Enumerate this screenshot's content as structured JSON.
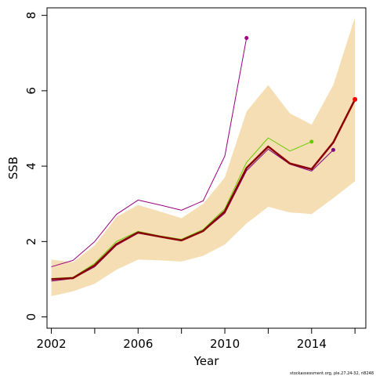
{
  "chart_data": {
    "type": "line",
    "xlabel": "Year",
    "ylabel": "SSB",
    "credit": "stockassessment.org, ple.27.24-32, ri8248",
    "xlim": [
      2001.8,
      2016.5
    ],
    "ylim": [
      -0.3,
      8.2
    ],
    "x_ticks": [
      2002,
      2004,
      2006,
      2008,
      2010,
      2012,
      2014,
      2016
    ],
    "x_tick_labels": [
      "2002",
      "",
      "2006",
      "",
      "2010",
      "",
      "2014",
      ""
    ],
    "y_ticks": [
      0,
      2,
      4,
      6,
      8
    ],
    "y_tick_labels": [
      "0",
      "2",
      "4",
      "6",
      "8"
    ],
    "grid": false,
    "colors": {
      "band": "#f5deb3",
      "main": "#8b0000",
      "retro_2011": "#9b0080",
      "retro_2014": "#66cc00",
      "retro_2015": "#800080",
      "terminal_point": "#ff0000"
    },
    "confidence_band": {
      "x": [
        2002,
        2003,
        2004,
        2005,
        2006,
        2007,
        2008,
        2009,
        2010,
        2011,
        2012,
        2013,
        2014,
        2015,
        2016
      ],
      "lower": [
        0.55,
        0.68,
        0.88,
        1.25,
        1.52,
        1.5,
        1.47,
        1.62,
        1.92,
        2.48,
        2.92,
        2.77,
        2.73,
        3.15,
        3.6
      ],
      "upper": [
        1.52,
        1.45,
        1.9,
        2.65,
        2.97,
        2.8,
        2.62,
        3.0,
        3.7,
        5.45,
        6.15,
        5.4,
        5.1,
        6.15,
        7.95
      ]
    },
    "series": [
      {
        "color": "#9b0080",
        "x": [
          2002,
          2003,
          2004,
          2005,
          2006,
          2007,
          2008,
          2009,
          2010,
          2011
        ],
        "values": [
          1.33,
          1.5,
          2.0,
          2.72,
          3.1,
          2.97,
          2.83,
          3.08,
          4.27,
          7.4
        ],
        "end_point": true
      },
      {
        "color": "#66cc00",
        "x": [
          2002,
          2003,
          2004,
          2005,
          2006,
          2007,
          2008,
          2009,
          2010,
          2011,
          2012,
          2013,
          2014
        ],
        "values": [
          1.02,
          1.05,
          1.42,
          2.0,
          2.27,
          2.15,
          2.06,
          2.32,
          2.87,
          4.1,
          4.75,
          4.4,
          4.65
        ],
        "end_point": true
      },
      {
        "color": "#800080",
        "x": [
          2002,
          2003,
          2004,
          2005,
          2006,
          2007,
          2008,
          2009,
          2010,
          2011,
          2012,
          2013,
          2014,
          2015
        ],
        "values": [
          0.95,
          1.02,
          1.33,
          1.9,
          2.22,
          2.12,
          2.02,
          2.27,
          2.75,
          3.88,
          4.45,
          4.05,
          3.87,
          4.43
        ],
        "end_point": true
      },
      {
        "color": "#8b0000",
        "main": true,
        "x": [
          2002,
          2003,
          2004,
          2005,
          2006,
          2007,
          2008,
          2009,
          2010,
          2011,
          2012,
          2013,
          2014,
          2015,
          2016
        ],
        "values": [
          1.0,
          1.03,
          1.37,
          1.93,
          2.24,
          2.13,
          2.03,
          2.28,
          2.8,
          3.95,
          4.52,
          4.07,
          3.92,
          4.63,
          5.77
        ],
        "end_point": true,
        "end_point_color": "#ff0000"
      }
    ]
  }
}
